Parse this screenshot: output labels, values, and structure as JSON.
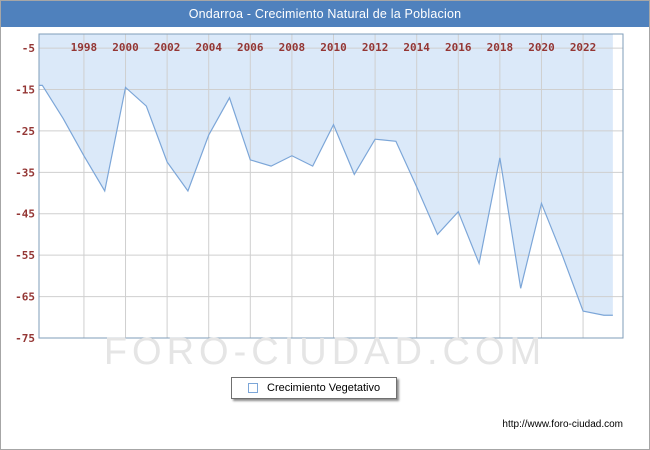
{
  "title": "Ondarroa - Crecimiento Natural de la Poblacion",
  "watermark": "FORO-CIUDAD.COM",
  "footer_url": "http://www.foro-ciudad.com",
  "legend": {
    "label": "Crecimiento Vegetativo"
  },
  "colors": {
    "title_bar_bg": "#4f81bd",
    "title_text": "#ffffff",
    "area_fill": "#dbe9f9",
    "line": "#7ca6d8",
    "grid": "#cfcfcf",
    "tick_label": "#943634",
    "plot_border": "#7f9db9",
    "watermark": "#e5e5e5",
    "footer_text": "#000000"
  },
  "chart_data": {
    "type": "area",
    "title": "Ondarroa - Crecimiento Natural de la Poblacion",
    "series_name": "Crecimiento Vegetativo",
    "x": [
      1996,
      1997,
      1998,
      1999,
      2000,
      2001,
      2002,
      2003,
      2004,
      2005,
      2006,
      2007,
      2008,
      2009,
      2010,
      2011,
      2012,
      2013,
      2014,
      2015,
      2016,
      2017,
      2018,
      2019,
      2020,
      2021,
      2022,
      2023
    ],
    "values": [
      -14,
      -22,
      -31,
      -39.5,
      -14.5,
      -19,
      -32.5,
      -39.5,
      -26,
      -17,
      -32,
      -33.5,
      -31,
      -33.5,
      -23.5,
      -35.5,
      -27,
      -27.5,
      -38.5,
      -50,
      -44.5,
      -57,
      -31.5,
      -63,
      -42.5,
      -55,
      -68.5,
      -69.5
    ],
    "xticks": [
      1998,
      2000,
      2002,
      2004,
      2006,
      2008,
      2010,
      2012,
      2014,
      2016,
      2018,
      2020,
      2022
    ],
    "yticks": [
      -5,
      -15,
      -25,
      -35,
      -45,
      -55,
      -65,
      -75
    ],
    "xlim": [
      1995.84,
      2023.92
    ],
    "ylim": [
      -75,
      -1.6
    ],
    "grid": true,
    "legend_position": "bottom",
    "xlabel": "",
    "ylabel": ""
  }
}
